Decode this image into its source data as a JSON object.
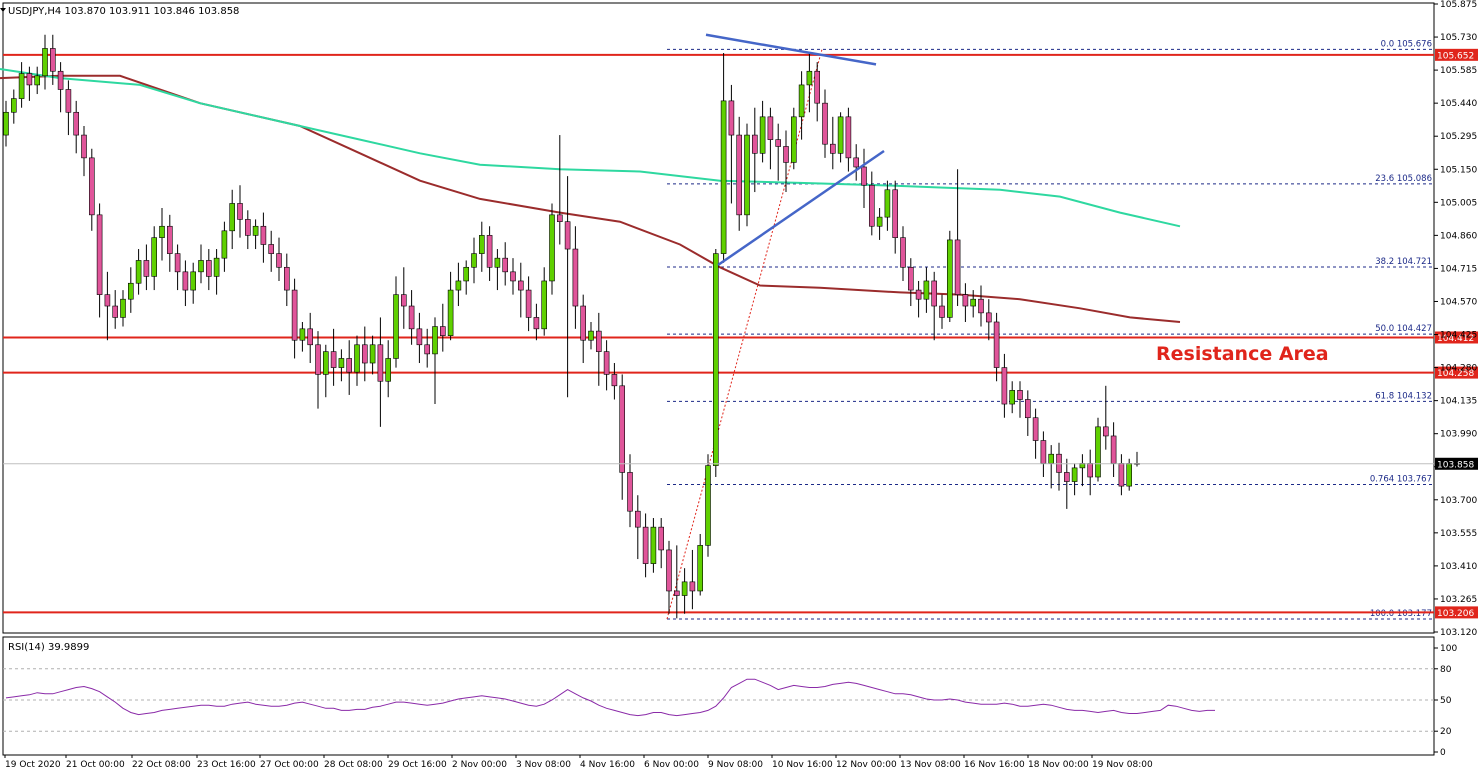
{
  "header": {
    "symbol_title": "USDJPY,H4  103.870 103.911 103.846 103.858",
    "rsi_title": "RSI(14) 39.9899"
  },
  "colors": {
    "bull": "#5fd000",
    "bear": "#e0559a",
    "ma_fast": "#2ed8a0",
    "ma_slow": "#9b2c2c",
    "horizontal": "#e0251b",
    "trendline": "#4566c8",
    "fib": "#1c2a88",
    "rsi": "#8a2aa8"
  },
  "chart_data": [
    {
      "type": "candlestick",
      "title": "USDJPY,H4",
      "ylim": [
        103.12,
        105.875
      ],
      "y_ticks": [
        "105.875",
        "105.730",
        "105.585",
        "105.440",
        "105.295",
        "105.150",
        "105.005",
        "104.860",
        "104.715",
        "104.570",
        "104.425",
        "104.280",
        "104.135",
        "103.990",
        "103.845",
        "103.700",
        "103.555",
        "103.410",
        "103.265",
        "103.120"
      ],
      "x_ticks": [
        "19 Oct 2020",
        "21 Oct 00:00",
        "22 Oct 08:00",
        "23 Oct 16:00",
        "27 Oct 00:00",
        "28 Oct 08:00",
        "29 Oct 16:00",
        "2 Nov 00:00",
        "3 Nov 08:00",
        "4 Nov 16:00",
        "6 Nov 00:00",
        "9 Nov 08:00",
        "10 Nov 16:00",
        "12 Nov 00:00",
        "13 Nov 08:00",
        "16 Nov 16:00",
        "18 Nov 00:00",
        "19 Nov 08:00"
      ],
      "current_price": "103.858",
      "horizontal_levels": [
        {
          "label": "105.652",
          "value": 105.652
        },
        {
          "label": "104.412",
          "value": 104.412
        },
        {
          "label": "104.258",
          "value": 104.258
        },
        {
          "label": "103.206",
          "value": 103.206
        }
      ],
      "fibonacci": [
        {
          "label": "0.0 105.676",
          "value": 105.676
        },
        {
          "label": "23.6 105.086",
          "value": 105.086
        },
        {
          "label": "38.2 104.721",
          "value": 104.721
        },
        {
          "label": "50.0 104.427",
          "value": 104.427
        },
        {
          "label": "61.8 104.132",
          "value": 104.132
        },
        {
          "label": "0.764 103.767",
          "value": 103.767
        },
        {
          "label": "100.0 103.177",
          "value": 103.177
        }
      ],
      "annotation": "Resistance Area",
      "candles": [
        [
          105.3,
          105.45,
          105.4,
          105.25
        ],
        [
          105.4,
          105.5,
          105.46,
          105.35
        ],
        [
          105.46,
          105.62,
          105.57,
          105.42
        ],
        [
          105.57,
          105.6,
          105.52,
          105.45
        ],
        [
          105.52,
          105.6,
          105.56,
          105.48
        ],
        [
          105.56,
          105.74,
          105.68,
          105.5
        ],
        [
          105.68,
          105.74,
          105.58,
          105.52
        ],
        [
          105.58,
          105.62,
          105.5,
          105.4
        ],
        [
          105.5,
          105.54,
          105.4,
          105.3
        ],
        [
          105.4,
          105.45,
          105.3,
          105.22
        ],
        [
          105.3,
          105.34,
          105.2,
          105.12
        ],
        [
          105.2,
          105.24,
          104.95,
          104.88
        ],
        [
          104.95,
          105.0,
          104.6,
          104.5
        ],
        [
          104.6,
          104.7,
          104.55,
          104.4
        ],
        [
          104.55,
          104.62,
          104.5,
          104.45
        ],
        [
          104.5,
          104.62,
          104.58,
          104.46
        ],
        [
          104.58,
          104.72,
          104.65,
          104.52
        ],
        [
          104.65,
          104.8,
          104.75,
          104.6
        ],
        [
          104.75,
          104.82,
          104.68,
          104.62
        ],
        [
          104.68,
          104.9,
          104.85,
          104.62
        ],
        [
          104.85,
          104.98,
          104.9,
          104.75
        ],
        [
          104.9,
          104.95,
          104.78,
          104.7
        ],
        [
          104.78,
          104.82,
          104.7,
          104.62
        ],
        [
          104.7,
          104.75,
          104.62,
          104.55
        ],
        [
          104.62,
          104.74,
          104.7,
          104.56
        ],
        [
          104.7,
          104.82,
          104.75,
          104.65
        ],
        [
          104.75,
          104.8,
          104.68,
          104.62
        ],
        [
          104.68,
          104.8,
          104.76,
          104.6
        ],
        [
          104.76,
          104.92,
          104.88,
          104.7
        ],
        [
          104.88,
          105.06,
          105.0,
          104.8
        ],
        [
          105.0,
          105.08,
          104.93,
          104.85
        ],
        [
          104.93,
          104.97,
          104.86,
          104.8
        ],
        [
          104.86,
          104.93,
          104.9,
          104.8
        ],
        [
          104.9,
          104.96,
          104.82,
          104.74
        ],
        [
          104.82,
          104.88,
          104.78,
          104.7
        ],
        [
          104.78,
          104.85,
          104.72,
          104.66
        ],
        [
          104.72,
          104.78,
          104.62,
          104.55
        ],
        [
          104.62,
          104.67,
          104.4,
          104.32
        ],
        [
          104.4,
          104.48,
          104.45,
          104.35
        ],
        [
          104.45,
          104.52,
          104.38,
          104.3
        ],
        [
          104.38,
          104.44,
          104.25,
          104.1
        ],
        [
          104.25,
          104.38,
          104.35,
          104.15
        ],
        [
          104.35,
          104.45,
          104.28,
          104.2
        ],
        [
          104.28,
          104.36,
          104.32,
          104.22
        ],
        [
          104.32,
          104.4,
          104.26,
          104.16
        ],
        [
          104.26,
          104.42,
          104.38,
          104.2
        ],
        [
          104.38,
          104.46,
          104.3,
          104.22
        ],
        [
          104.3,
          104.42,
          104.38,
          104.25
        ],
        [
          104.38,
          104.5,
          104.22,
          104.02
        ],
        [
          104.22,
          104.4,
          104.32,
          104.15
        ],
        [
          104.32,
          104.68,
          104.6,
          104.28
        ],
        [
          104.6,
          104.72,
          104.55,
          104.45
        ],
        [
          104.55,
          104.62,
          104.45,
          104.38
        ],
        [
          104.45,
          104.52,
          104.38,
          104.3
        ],
        [
          104.38,
          104.45,
          104.34,
          104.28
        ],
        [
          104.34,
          104.5,
          104.46,
          104.12
        ],
        [
          104.46,
          104.56,
          104.42,
          104.35
        ],
        [
          104.42,
          104.7,
          104.62,
          104.4
        ],
        [
          104.62,
          104.74,
          104.66,
          104.55
        ],
        [
          104.66,
          104.75,
          104.72,
          104.6
        ],
        [
          104.72,
          104.85,
          104.78,
          104.65
        ],
        [
          104.78,
          104.92,
          104.86,
          104.7
        ],
        [
          104.86,
          104.9,
          104.72,
          104.66
        ],
        [
          104.72,
          104.8,
          104.76,
          104.62
        ],
        [
          104.76,
          104.83,
          104.7,
          104.64
        ],
        [
          104.7,
          104.76,
          104.66,
          104.6
        ],
        [
          104.66,
          104.74,
          104.62,
          104.5
        ],
        [
          104.62,
          104.68,
          104.5,
          104.44
        ],
        [
          104.5,
          104.56,
          104.45,
          104.4
        ],
        [
          104.45,
          104.72,
          104.66,
          104.42
        ],
        [
          104.66,
          105.0,
          104.95,
          104.6
        ],
        [
          104.95,
          105.3,
          104.92,
          104.82
        ],
        [
          104.92,
          105.12,
          104.8,
          104.15
        ],
        [
          104.8,
          104.9,
          104.55,
          104.45
        ],
        [
          104.55,
          104.6,
          104.4,
          104.3
        ],
        [
          104.4,
          104.48,
          104.44,
          104.36
        ],
        [
          104.44,
          104.52,
          104.35,
          104.2
        ],
        [
          104.35,
          104.4,
          104.25,
          104.18
        ],
        [
          104.25,
          104.3,
          104.2,
          104.14
        ],
        [
          104.2,
          104.25,
          103.82,
          103.7
        ],
        [
          103.82,
          103.9,
          103.65,
          103.58
        ],
        [
          103.65,
          103.72,
          103.58,
          103.44
        ],
        [
          103.58,
          103.64,
          103.42,
          103.36
        ],
        [
          103.42,
          103.62,
          103.58,
          103.38
        ],
        [
          103.58,
          103.62,
          103.48,
          103.4
        ],
        [
          103.48,
          103.52,
          103.3,
          103.2
        ],
        [
          103.3,
          103.5,
          103.28,
          103.18
        ],
        [
          103.28,
          103.4,
          103.34,
          103.2
        ],
        [
          103.34,
          103.48,
          103.3,
          103.22
        ],
        [
          103.3,
          103.55,
          103.5,
          103.28
        ],
        [
          103.5,
          103.9,
          103.85,
          103.45
        ],
        [
          103.85,
          104.8,
          104.78,
          103.8
        ],
        [
          104.78,
          105.66,
          105.45,
          104.74
        ],
        [
          105.45,
          105.52,
          105.3,
          105.0
        ],
        [
          105.3,
          105.38,
          104.95,
          104.88
        ],
        [
          104.95,
          105.35,
          105.3,
          104.9
        ],
        [
          105.3,
          105.42,
          105.22,
          105.05
        ],
        [
          105.22,
          105.45,
          105.38,
          105.18
        ],
        [
          105.38,
          105.42,
          105.28,
          105.15
        ],
        [
          105.28,
          105.35,
          105.25,
          105.1
        ],
        [
          105.25,
          105.32,
          105.18,
          105.05
        ],
        [
          105.18,
          105.42,
          105.38,
          105.15
        ],
        [
          105.38,
          105.58,
          105.52,
          105.28
        ],
        [
          105.52,
          105.66,
          105.58,
          105.4
        ],
        [
          105.58,
          105.62,
          105.44,
          105.36
        ],
        [
          105.44,
          105.5,
          105.26,
          105.2
        ],
        [
          105.26,
          105.38,
          105.22,
          105.15
        ],
        [
          105.22,
          105.4,
          105.38,
          105.18
        ],
        [
          105.38,
          105.42,
          105.2,
          105.14
        ],
        [
          105.2,
          105.26,
          105.16,
          105.1
        ],
        [
          105.16,
          105.24,
          105.08,
          104.98
        ],
        [
          105.08,
          105.14,
          104.9,
          104.86
        ],
        [
          104.9,
          104.98,
          104.94,
          104.84
        ],
        [
          104.94,
          105.1,
          105.06,
          104.88
        ],
        [
          105.06,
          105.1,
          104.85,
          104.78
        ],
        [
          104.85,
          104.9,
          104.72,
          104.66
        ],
        [
          104.72,
          104.76,
          104.62,
          104.55
        ],
        [
          104.62,
          104.66,
          104.58,
          104.5
        ],
        [
          104.58,
          104.72,
          104.66,
          104.52
        ],
        [
          104.66,
          104.7,
          104.55,
          104.4
        ],
        [
          104.55,
          104.6,
          104.5,
          104.45
        ],
        [
          104.5,
          104.88,
          104.84,
          104.48
        ],
        [
          104.84,
          105.15,
          104.6,
          104.55
        ],
        [
          104.6,
          104.65,
          104.55,
          104.48
        ],
        [
          104.55,
          104.62,
          104.58,
          104.5
        ],
        [
          104.58,
          104.64,
          104.52,
          104.46
        ],
        [
          104.52,
          104.58,
          104.48,
          104.4
        ],
        [
          104.48,
          104.52,
          104.28,
          104.22
        ],
        [
          104.28,
          104.34,
          104.12,
          104.06
        ],
        [
          104.12,
          104.22,
          104.18,
          104.08
        ],
        [
          104.18,
          104.22,
          104.14,
          104.06
        ],
        [
          104.14,
          104.18,
          104.06,
          103.98
        ],
        [
          104.06,
          104.1,
          103.96,
          103.88
        ],
        [
          103.96,
          104.0,
          103.86,
          103.8
        ],
        [
          103.86,
          103.94,
          103.9,
          103.75
        ],
        [
          103.9,
          103.95,
          103.82,
          103.74
        ],
        [
          103.82,
          103.88,
          103.78,
          103.66
        ],
        [
          103.78,
          103.86,
          103.84,
          103.72
        ],
        [
          103.84,
          103.9,
          103.86,
          103.76
        ],
        [
          103.86,
          103.92,
          103.8,
          103.72
        ],
        [
          103.8,
          104.06,
          104.02,
          103.78
        ],
        [
          104.02,
          104.2,
          103.98,
          103.92
        ],
        [
          103.98,
          104.04,
          103.86,
          103.8
        ],
        [
          103.86,
          103.9,
          103.76,
          103.72
        ],
        [
          103.76,
          103.88,
          103.86,
          103.74
        ],
        [
          103.86,
          103.91,
          103.858,
          103.846
        ]
      ],
      "ma_fast": [
        [
          0,
          105.59
        ],
        [
          60,
          105.55
        ],
        [
          140,
          105.52
        ],
        [
          200,
          105.44
        ],
        [
          300,
          105.34
        ],
        [
          360,
          105.28
        ],
        [
          420,
          105.22
        ],
        [
          480,
          105.17
        ],
        [
          560,
          105.15
        ],
        [
          640,
          105.14
        ],
        [
          720,
          105.1
        ],
        [
          800,
          105.09
        ],
        [
          880,
          105.08
        ],
        [
          940,
          105.07
        ],
        [
          1000,
          105.06
        ],
        [
          1060,
          105.03
        ],
        [
          1120,
          104.96
        ],
        [
          1180,
          104.9
        ]
      ],
      "ma_slow": [
        [
          0,
          105.55
        ],
        [
          60,
          105.56
        ],
        [
          120,
          105.56
        ],
        [
          200,
          105.44
        ],
        [
          300,
          105.34
        ],
        [
          360,
          105.22
        ],
        [
          420,
          105.1
        ],
        [
          480,
          105.02
        ],
        [
          560,
          104.96
        ],
        [
          620,
          104.92
        ],
        [
          680,
          104.82
        ],
        [
          720,
          104.72
        ],
        [
          760,
          104.64
        ],
        [
          820,
          104.63
        ],
        [
          900,
          104.61
        ],
        [
          960,
          104.6
        ],
        [
          1020,
          104.58
        ],
        [
          1080,
          104.54
        ],
        [
          1130,
          104.5
        ],
        [
          1180,
          104.48
        ]
      ]
    },
    {
      "type": "line",
      "title": "RSI(14) 39.9899",
      "ylim": [
        0,
        100
      ],
      "y_ticks": [
        "100",
        "80",
        "50",
        "20",
        "0"
      ],
      "levels": [
        80,
        50,
        20
      ],
      "values": [
        52,
        53,
        54,
        55,
        57,
        56,
        56,
        58,
        60,
        62,
        63,
        61,
        58,
        53,
        48,
        42,
        38,
        36,
        37,
        38,
        40,
        41,
        42,
        43,
        44,
        45,
        45,
        44,
        44,
        46,
        47,
        48,
        46,
        45,
        44,
        44,
        45,
        47,
        48,
        46,
        44,
        42,
        42,
        40,
        40,
        41,
        41,
        43,
        44,
        46,
        48,
        48,
        47,
        46,
        45,
        46,
        47,
        49,
        51,
        52,
        53,
        54,
        53,
        52,
        51,
        49,
        47,
        45,
        44,
        46,
        50,
        55,
        60,
        56,
        52,
        49,
        45,
        42,
        40,
        38,
        36,
        35,
        36,
        38,
        38,
        36,
        35,
        36,
        37,
        38,
        40,
        44,
        52,
        62,
        66,
        70,
        70,
        67,
        64,
        60,
        62,
        64,
        63,
        62,
        62,
        63,
        65,
        66,
        67,
        66,
        64,
        62,
        60,
        58,
        56,
        56,
        55,
        53,
        51,
        50,
        50,
        51,
        50,
        48,
        47,
        46,
        46,
        46,
        47,
        46,
        44,
        44,
        45,
        46,
        45,
        43,
        41,
        40,
        40,
        39,
        38,
        39,
        40,
        38,
        37,
        37,
        38,
        39,
        40,
        45,
        44,
        42,
        40,
        39,
        40,
        40
      ]
    }
  ]
}
